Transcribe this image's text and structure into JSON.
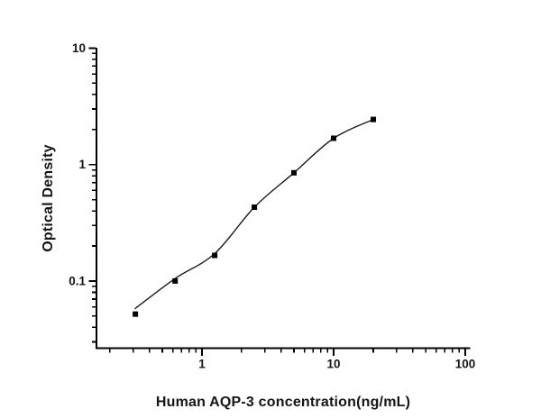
{
  "figure": {
    "background": "#ffffff",
    "ink_color": "#000000",
    "text_color": "#151515"
  },
  "chart_data": {
    "type": "scatter",
    "title": "",
    "xlabel": "Human AQP-3 concentration(ng/mL)",
    "ylabel": "Optical Density",
    "x_scale": "log",
    "y_scale": "log",
    "xlim": [
      0.158,
      108.2
    ],
    "ylim": [
      0.0265,
      10.07
    ],
    "grid": false,
    "legend": null,
    "marker": "filled-square",
    "marker_size": 6,
    "marker_color": "#000000",
    "line_color": "#1a1a1a",
    "x": [
      0.312,
      0.625,
      1.25,
      2.5,
      5,
      10,
      20
    ],
    "y": [
      0.052,
      0.1,
      0.166,
      0.43,
      0.85,
      1.68,
      2.44
    ],
    "fit_curve": {
      "x": [
        0.311,
        0.625,
        1.25,
        2.5,
        5,
        10,
        20
      ],
      "y": [
        0.058,
        0.105,
        0.172,
        0.43,
        0.85,
        1.68,
        2.44
      ]
    },
    "x_major_ticks": [
      {
        "value": 1,
        "label": "1"
      },
      {
        "value": 10,
        "label": "10"
      },
      {
        "value": 100,
        "label": "100"
      }
    ],
    "x_minor_ticks": [
      0.2,
      0.3,
      0.4,
      0.5,
      0.6,
      0.7,
      0.8,
      0.9,
      2,
      3,
      4,
      5,
      6,
      7,
      8,
      9,
      20,
      30,
      40,
      50,
      60,
      70,
      80,
      90
    ],
    "y_major_ticks": [
      {
        "value": 0.1,
        "label": "0.1"
      },
      {
        "value": 1,
        "label": "1"
      },
      {
        "value": 10,
        "label": "10"
      }
    ],
    "y_minor_ticks": [
      0.03,
      0.04,
      0.05,
      0.06,
      0.07,
      0.08,
      0.09,
      0.2,
      0.3,
      0.4,
      0.5,
      0.6,
      0.7,
      0.8,
      0.9,
      2,
      3,
      4,
      5,
      6,
      7,
      8,
      9
    ]
  }
}
